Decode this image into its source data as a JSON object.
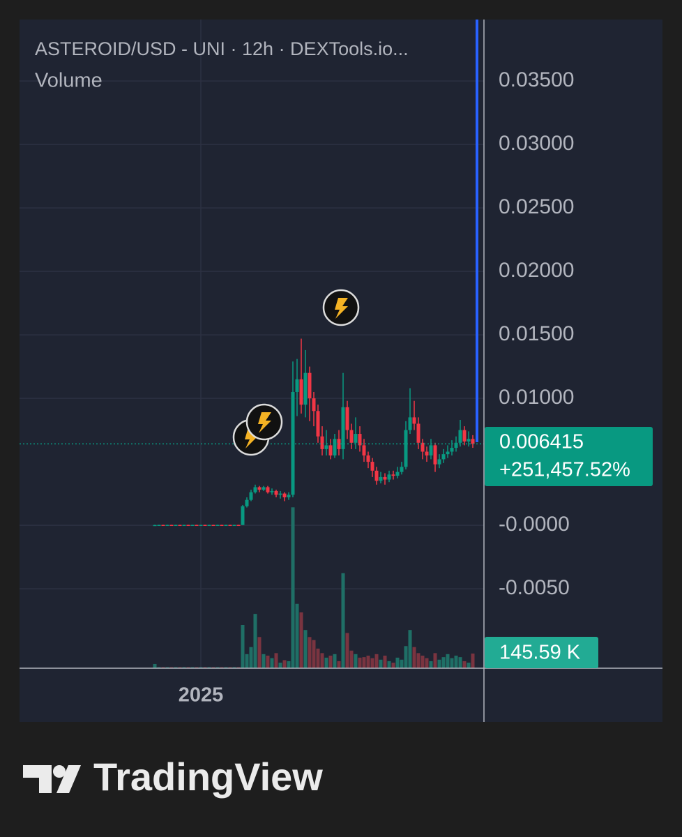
{
  "chart_data": {
    "type": "candlestick",
    "title": "ASTEROID/USD - UNI · 12h · DEXTools.io...",
    "subtitle": "Volume",
    "brand": "TradingView",
    "categories": [
      null,
      null,
      null,
      null,
      null,
      null,
      null,
      null,
      null,
      null,
      null,
      "2025",
      null,
      null,
      null,
      null,
      null,
      null,
      null,
      null,
      null,
      null,
      null,
      null,
      null,
      null,
      null,
      null,
      null,
      null,
      null,
      null,
      null,
      null,
      null,
      null,
      null,
      null,
      null,
      null,
      null,
      null,
      null,
      null,
      null,
      null,
      null,
      null,
      null,
      null,
      null,
      null,
      null,
      null,
      null,
      null,
      null,
      null,
      null,
      null,
      null,
      null,
      null,
      null,
      null,
      null,
      null,
      null,
      null,
      null,
      null,
      null,
      null,
      null,
      null,
      null,
      null
    ],
    "open": [
      2e-05,
      2e-05,
      3e-05,
      2e-05,
      3e-05,
      2e-05,
      3e-05,
      2e-05,
      3e-05,
      2e-05,
      3e-05,
      2e-05,
      3e-05,
      2e-05,
      3e-05,
      2e-05,
      3e-05,
      2e-05,
      3e-05,
      2e-05,
      3e-05,
      2e-05,
      0.0015,
      0.002,
      0.0026,
      0.003,
      0.0028,
      0.003,
      0.0026,
      0.0027,
      0.0024,
      0.0025,
      0.0022,
      0.0024,
      0.0105,
      0.0115,
      0.0095,
      0.012,
      0.01,
      0.009,
      0.007,
      0.006,
      0.0063,
      0.0055,
      0.0068,
      0.006,
      0.0093,
      0.0075,
      0.0065,
      0.0072,
      0.0063,
      0.0055,
      0.005,
      0.0043,
      0.0035,
      0.0038,
      0.0036,
      0.004,
      0.0039,
      0.0042,
      0.0046,
      0.0075,
      0.0085,
      0.008,
      0.0065,
      0.0058,
      0.0055,
      0.0063,
      0.0048,
      0.0052,
      0.0056,
      0.0058,
      0.0061,
      0.0065,
      0.0075,
      0.0066,
      0.0068
    ],
    "high": [
      4e-05,
      4e-05,
      4e-05,
      4e-05,
      4e-05,
      4e-05,
      4e-05,
      4e-05,
      4e-05,
      4e-05,
      4e-05,
      4e-05,
      4e-05,
      4e-05,
      4e-05,
      4e-05,
      4e-05,
      4e-05,
      4e-05,
      4e-05,
      4e-05,
      0.0016,
      0.0022,
      0.0028,
      0.0032,
      0.0031,
      0.0031,
      0.0031,
      0.0029,
      0.0028,
      0.0027,
      0.0026,
      0.0026,
      0.0129,
      0.0131,
      0.0147,
      0.0138,
      0.0125,
      0.0105,
      0.0095,
      0.0078,
      0.0075,
      0.0068,
      0.0072,
      0.0075,
      0.012,
      0.0098,
      0.008,
      0.0085,
      0.0078,
      0.0068,
      0.0058,
      0.0053,
      0.0046,
      0.0042,
      0.0041,
      0.0043,
      0.0043,
      0.0046,
      0.005,
      0.0082,
      0.0108,
      0.0098,
      0.0085,
      0.0068,
      0.0062,
      0.0068,
      0.0065,
      0.0056,
      0.006,
      0.0063,
      0.0067,
      0.007,
      0.0083,
      0.0078,
      0.0074,
      0.0071
    ],
    "low": [
      1e-05,
      1e-05,
      1e-05,
      1e-05,
      1e-05,
      1e-05,
      1e-05,
      1e-05,
      1e-05,
      1e-05,
      1e-05,
      1e-05,
      1e-05,
      1e-05,
      1e-05,
      1e-05,
      1e-05,
      1e-05,
      1e-05,
      1e-05,
      1e-05,
      2e-05,
      0.0014,
      0.0019,
      0.0025,
      0.0026,
      0.0027,
      0.0025,
      0.0024,
      0.0022,
      0.0021,
      0.0019,
      0.002,
      0.0022,
      0.0086,
      0.0088,
      0.0085,
      0.0082,
      0.0078,
      0.0065,
      0.0055,
      0.0055,
      0.0052,
      0.0053,
      0.0055,
      0.0052,
      0.0068,
      0.006,
      0.006,
      0.0058,
      0.005,
      0.0045,
      0.0038,
      0.0032,
      0.0033,
      0.0032,
      0.0034,
      0.0036,
      0.0037,
      0.004,
      0.0044,
      0.0072,
      0.0075,
      0.006,
      0.0052,
      0.005,
      0.0052,
      0.0042,
      0.0045,
      0.0049,
      0.0053,
      0.0055,
      0.0058,
      0.0062,
      0.0063,
      0.0062,
      0.0061
    ],
    "close": [
      2e-05,
      3e-05,
      2e-05,
      3e-05,
      2e-05,
      3e-05,
      2e-05,
      3e-05,
      2e-05,
      3e-05,
      2e-05,
      3e-05,
      2e-05,
      3e-05,
      2e-05,
      3e-05,
      2e-05,
      3e-05,
      2e-05,
      3e-05,
      2e-05,
      0.0015,
      0.002,
      0.0026,
      0.003,
      0.0028,
      0.003,
      0.0026,
      0.0027,
      0.0024,
      0.0025,
      0.0022,
      0.0024,
      0.0105,
      0.0115,
      0.0095,
      0.012,
      0.01,
      0.009,
      0.007,
      0.006,
      0.0063,
      0.0055,
      0.0068,
      0.006,
      0.0093,
      0.0075,
      0.0065,
      0.0072,
      0.0063,
      0.0055,
      0.005,
      0.0043,
      0.0035,
      0.0038,
      0.0036,
      0.004,
      0.0039,
      0.0042,
      0.0046,
      0.0075,
      0.0085,
      0.008,
      0.0065,
      0.0058,
      0.0055,
      0.0063,
      0.0048,
      0.0052,
      0.0056,
      0.0058,
      0.0061,
      0.0065,
      0.0075,
      0.0066,
      0.0068,
      0.006415
    ],
    "volume": [
      42000,
      10000,
      10000,
      10000,
      10000,
      10000,
      10000,
      10000,
      10000,
      10000,
      10000,
      10000,
      10000,
      10000,
      10000,
      10000,
      10000,
      10000,
      10000,
      10000,
      10000,
      430000,
      140000,
      210000,
      540000,
      310000,
      140000,
      125000,
      100000,
      150000,
      55000,
      80000,
      70000,
      1600000,
      640000,
      555000,
      380000,
      310000,
      280000,
      195000,
      150000,
      105000,
      125000,
      140000,
      70000,
      945000,
      350000,
      175000,
      140000,
      105000,
      110000,
      125000,
      100000,
      140000,
      85000,
      125000,
      70000,
      55000,
      105000,
      85000,
      220000,
      380000,
      210000,
      150000,
      125000,
      100000,
      70000,
      150000,
      85000,
      110000,
      140000,
      100000,
      125000,
      110000,
      70000,
      55000,
      145590
    ],
    "last_close_label": "0.006415",
    "change_label": "+251,457.52%",
    "volume_label": "145.59 K",
    "up_color": "#089981",
    "down_color": "#f23645",
    "volume_up_color": "#1f6f66",
    "volume_down_color": "#7a3440",
    "ylim": [
      -0.01126,
      0.03984
    ],
    "yticks": [
      {
        "value": 0.035,
        "label": "0.03500"
      },
      {
        "value": 0.03,
        "label": "0.03000"
      },
      {
        "value": 0.025,
        "label": "0.02500"
      },
      {
        "value": 0.02,
        "label": "0.02000"
      },
      {
        "value": 0.015,
        "label": "0.01500"
      },
      {
        "value": 0.01,
        "label": "0.01000"
      },
      {
        "value": 0,
        "label": "-0.0000"
      },
      {
        "value": -0.005,
        "label": "-0.0050"
      }
    ],
    "y2lim": [
      0,
      6450000
    ],
    "grid": true
  }
}
